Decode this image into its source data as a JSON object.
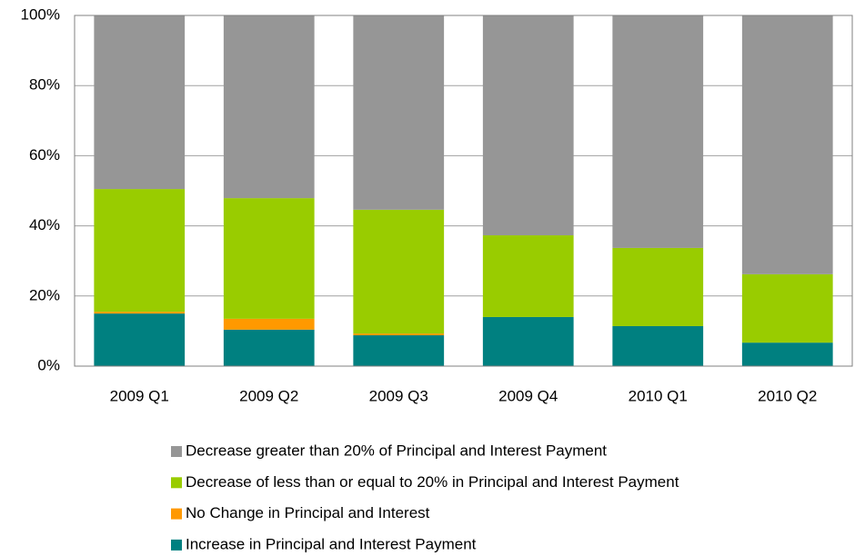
{
  "chart_data": {
    "type": "stacked_bar",
    "categories": [
      "2009 Q1",
      "2009 Q2",
      "2009 Q3",
      "2009 Q4",
      "2010 Q1",
      "2010 Q2"
    ],
    "series": [
      {
        "name": "Increase in Principal and Interest Payment",
        "color": "#008080",
        "values": [
          15.0,
          10.4,
          8.8,
          14.0,
          11.4,
          6.7
        ]
      },
      {
        "name": "No Change in Principal and Interest",
        "color": "#ff9900",
        "values": [
          0.5,
          3.1,
          0.5,
          0,
          0,
          0
        ]
      },
      {
        "name": "Decrease of less than or equal to 20% in Principal and Interest Payment",
        "color": "#99cc00",
        "values": [
          35.0,
          34.4,
          35.3,
          23.3,
          22.3,
          19.5
        ]
      },
      {
        "name": "Decrease greater than 20% of Principal and Interest Payment",
        "color": "#969696",
        "values": [
          49.5,
          52.1,
          55.4,
          62.7,
          66.3,
          73.8
        ]
      }
    ],
    "ylim": [
      0,
      100
    ],
    "yticks": [
      {
        "value": 0,
        "label": "0%"
      },
      {
        "value": 20,
        "label": "20%"
      },
      {
        "value": 40,
        "label": "40%"
      },
      {
        "value": 60,
        "label": "60%"
      },
      {
        "value": 80,
        "label": "80%"
      },
      {
        "value": 100,
        "label": "100%"
      }
    ],
    "grid": true
  }
}
